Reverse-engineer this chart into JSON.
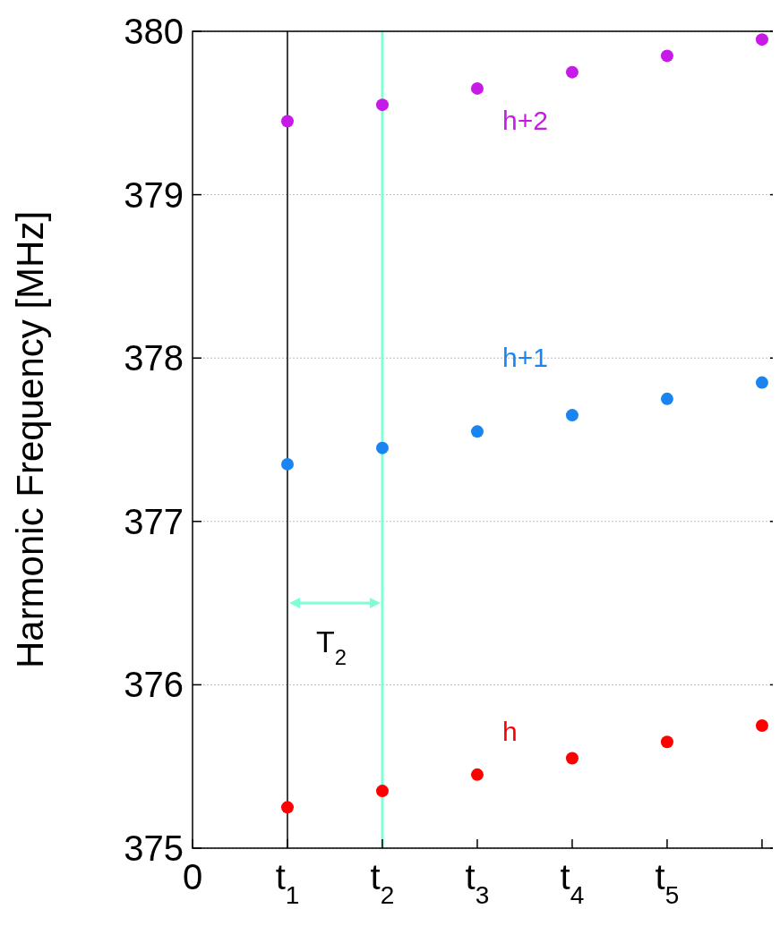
{
  "chart_data": {
    "type": "scatter",
    "ylabel": "Harmonic Frequency [MHz]",
    "x": [
      1,
      2,
      3,
      4,
      5,
      6
    ],
    "series": [
      {
        "name": "h",
        "color": "#ff0000",
        "values": [
          375.25,
          375.35,
          375.45,
          375.55,
          375.65,
          375.75
        ]
      },
      {
        "name": "h+1",
        "color": "#1a84f0",
        "values": [
          377.35,
          377.45,
          377.55,
          377.65,
          377.75,
          377.85
        ]
      },
      {
        "name": "h+2",
        "color": "#c71ae8",
        "values": [
          379.45,
          379.55,
          379.65,
          379.75,
          379.85,
          379.95
        ]
      }
    ],
    "xlim": [
      0,
      6.18
    ],
    "xticks": [
      0,
      {
        "value": 1,
        "label": "t$_{1}$"
      },
      {
        "value": 2,
        "label": "t$_{2}$"
      },
      {
        "value": 3,
        "label": "t$_{3}$"
      },
      {
        "value": 4,
        "label": "t$_{4}$"
      },
      {
        "value": 5,
        "label": "t$_{5}$"
      },
      {
        "value": 6,
        "label": null
      }
    ],
    "ylim": [
      375,
      380
    ],
    "yticks": [
      375,
      376,
      377,
      378,
      379,
      380
    ],
    "grid": "y",
    "marker": "circle",
    "ref_lines": [
      {
        "axis": "x",
        "value": 1,
        "label": null,
        "color": "#000000"
      },
      {
        "axis": "x",
        "value": 2,
        "label": null,
        "color": "#7fffd4"
      }
    ],
    "annotations": [
      "T$_{2}$"
    ]
  }
}
